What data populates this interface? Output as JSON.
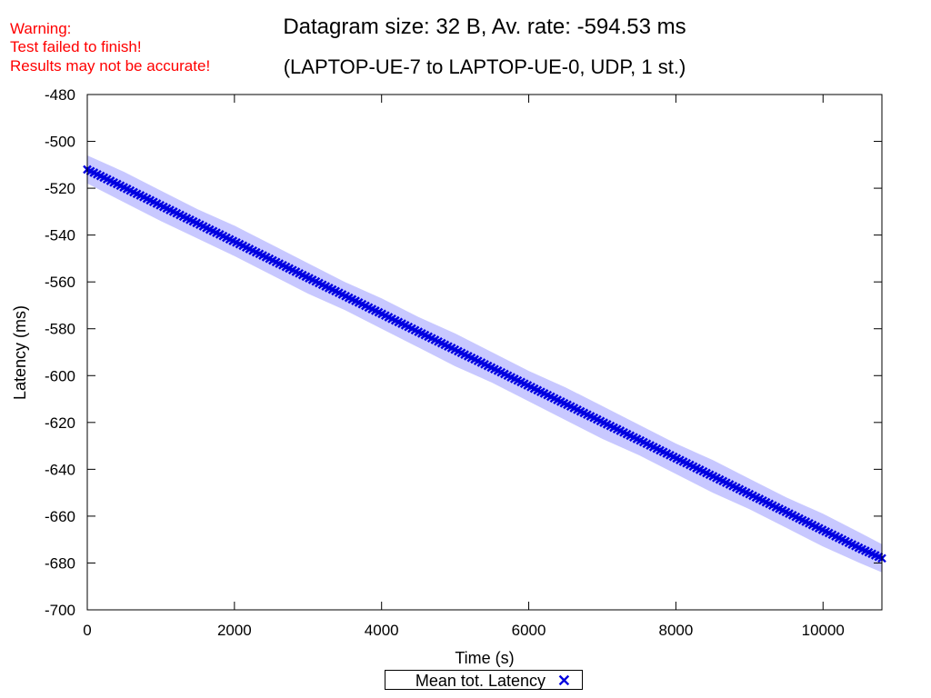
{
  "warning": {
    "line1": "Warning:",
    "line2": "Test failed to finish!",
    "line3": "Results may not be accurate!"
  },
  "chart_data": {
    "type": "scatter",
    "title": "Datagram size: 32 B, Av. rate: -594.53 ms",
    "subtitle": "(LAPTOP-UE-7 to LAPTOP-UE-0, UDP, 1 st.)",
    "xlabel": "Time (s)",
    "ylabel": "Latency (ms)",
    "xlim": [
      0,
      10800
    ],
    "ylim": [
      -700,
      -480
    ],
    "xticks": [
      0,
      2000,
      4000,
      6000,
      8000,
      10000
    ],
    "yticks": [
      -480,
      -500,
      -520,
      -540,
      -560,
      -580,
      -600,
      -620,
      -640,
      -660,
      -680,
      -700
    ],
    "grid": false,
    "legend_position": "bottom-center",
    "series": [
      {
        "name": "Mean tot. Latency",
        "marker": "x",
        "color": "#0000e0",
        "band_color": "#c8c8ff",
        "x": [
          0,
          500,
          1000,
          1500,
          2000,
          2500,
          3000,
          3500,
          4000,
          4500,
          5000,
          5500,
          6000,
          6500,
          7000,
          7500,
          8000,
          8500,
          9000,
          9500,
          10000,
          10500,
          10800
        ],
        "y": [
          -512,
          -519.7,
          -527.4,
          -535.1,
          -542.8,
          -550.5,
          -558.2,
          -565.9,
          -573.6,
          -581.3,
          -589,
          -596.7,
          -604.4,
          -612.1,
          -619.8,
          -627.5,
          -635.2,
          -642.9,
          -650.6,
          -658.3,
          -666,
          -673.7,
          -678
        ],
        "band_low": [
          -518,
          -526,
          -534,
          -541.5,
          -549,
          -557,
          -565,
          -572,
          -580,
          -588,
          -596,
          -603,
          -611,
          -619,
          -627,
          -634,
          -642,
          -650,
          -657,
          -665,
          -673,
          -680,
          -684
        ],
        "band_high": [
          -506,
          -513,
          -521,
          -529,
          -536,
          -544,
          -552,
          -560,
          -567,
          -575,
          -582,
          -590,
          -598,
          -605,
          -613,
          -621,
          -629,
          -636,
          -644,
          -652,
          -659,
          -667,
          -672
        ]
      }
    ]
  }
}
